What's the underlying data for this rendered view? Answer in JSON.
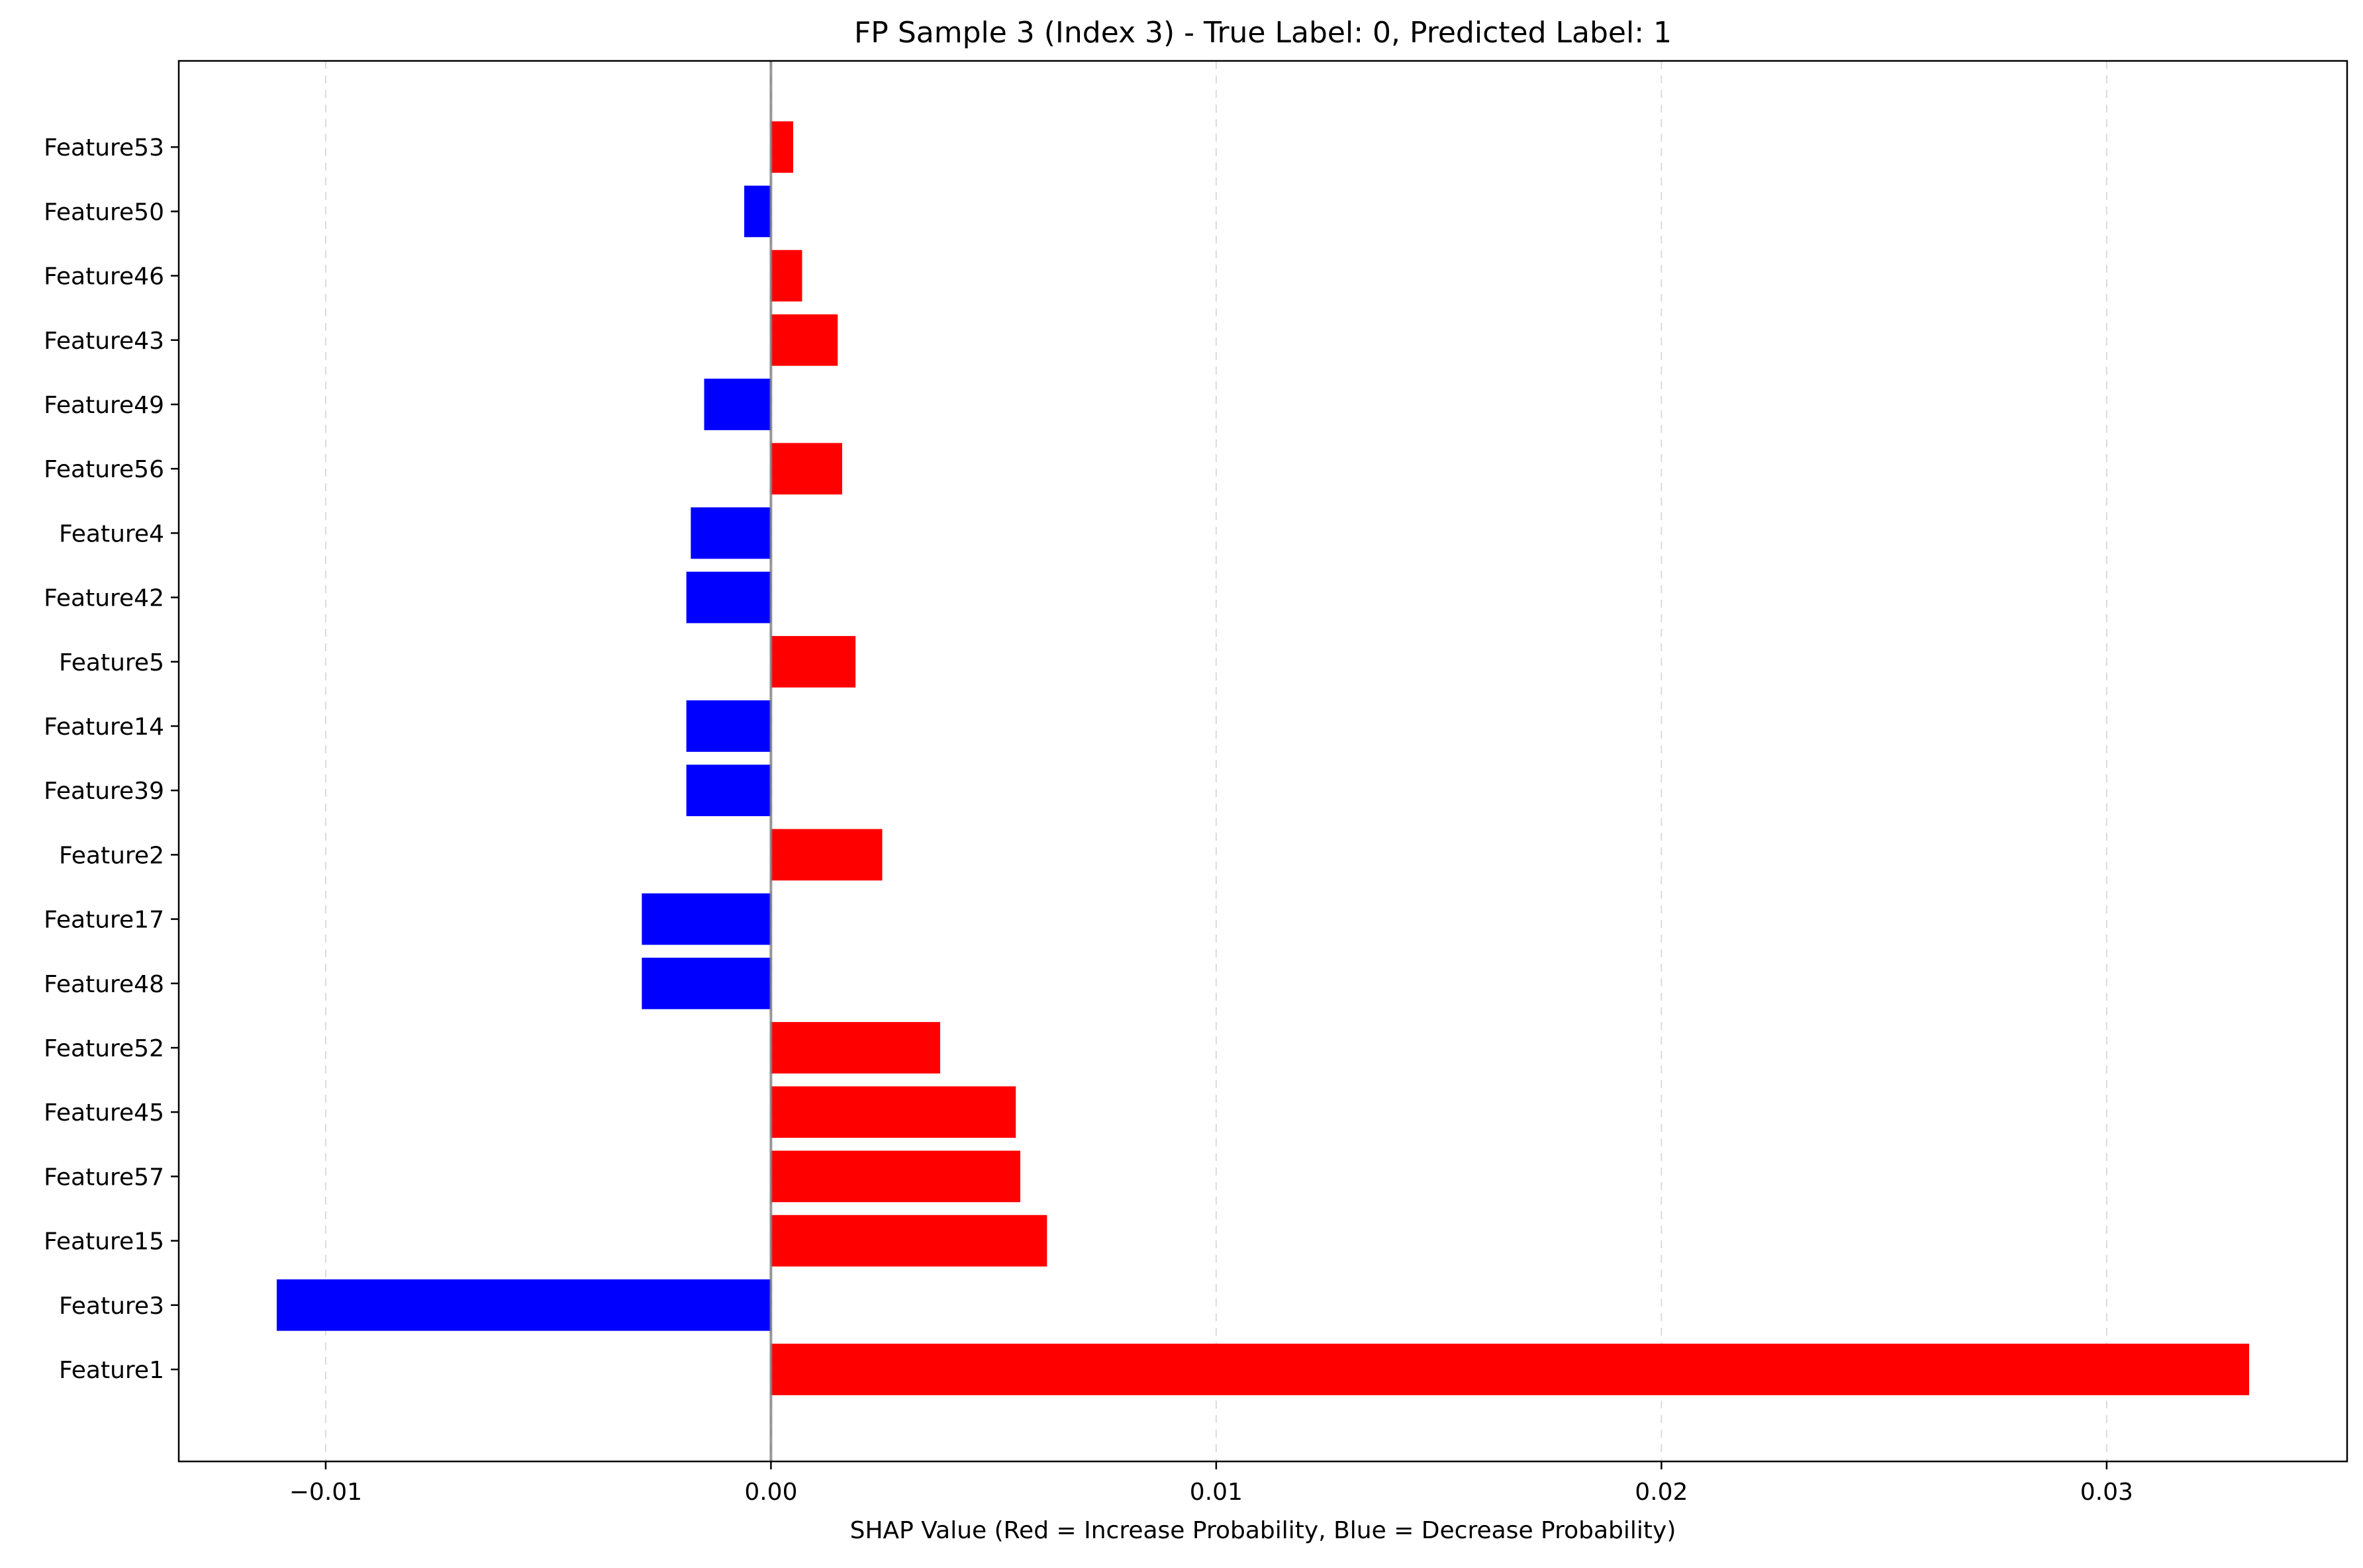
{
  "chart_data": {
    "type": "bar",
    "orientation": "horizontal",
    "title": "FP Sample 3 (Index 3) - True Label: 0, Predicted Label: 1",
    "xlabel": "SHAP Value (Red = Increase Probability, Blue = Decrease Probability)",
    "ylabel": "",
    "xlim": [
      -0.0133,
      0.0354
    ],
    "xticks": [
      -0.01,
      0.0,
      0.01,
      0.02,
      0.03
    ],
    "xtick_labels": [
      "−0.01",
      "0.00",
      "0.01",
      "0.02",
      "0.03"
    ],
    "grid": "x-axis dashed",
    "colors": {
      "positive": "#ff0000",
      "negative": "#0000ff",
      "zero_line": "#808080"
    },
    "categories": [
      "Feature1",
      "Feature3",
      "Feature15",
      "Feature57",
      "Feature45",
      "Feature52",
      "Feature48",
      "Feature17",
      "Feature2",
      "Feature39",
      "Feature14",
      "Feature5",
      "Feature42",
      "Feature4",
      "Feature56",
      "Feature49",
      "Feature43",
      "Feature46",
      "Feature50",
      "Feature53"
    ],
    "values": [
      0.0332,
      -0.0111,
      0.0062,
      0.0056,
      0.0055,
      0.0038,
      -0.0029,
      -0.0029,
      0.0025,
      -0.0019,
      -0.0019,
      0.0019,
      -0.0019,
      -0.0018,
      0.0016,
      -0.0015,
      0.0015,
      0.0007,
      -0.0006,
      0.0005
    ]
  }
}
